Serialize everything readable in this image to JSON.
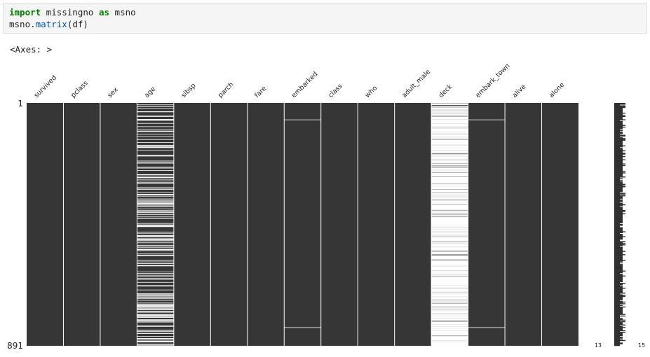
{
  "code": {
    "line1": {
      "kw_import": "import",
      "module": " missingno ",
      "kw_as": "as",
      "alias": " msno"
    },
    "line2": {
      "obj": "msno.",
      "func": "matrix",
      "args": "(df)"
    }
  },
  "output": {
    "text": "<Axes: >"
  },
  "chart_data": {
    "type": "heatmap",
    "columns": [
      "survived",
      "pclass",
      "sex",
      "age",
      "sibsp",
      "parch",
      "fare",
      "embarked",
      "class",
      "who",
      "adult_male",
      "deck",
      "embark_town",
      "alive",
      "alone"
    ],
    "missing_counts": [
      0,
      0,
      0,
      177,
      0,
      0,
      0,
      2,
      0,
      0,
      0,
      688,
      2,
      0,
      0
    ],
    "n_rows": 891,
    "row_labels": [
      "1",
      "891"
    ],
    "sparkline_min_label": "13",
    "sparkline_max_label": "15",
    "colors": {
      "filled": "#363636",
      "missing": "#ffffff",
      "separator": "#ffffff"
    }
  }
}
